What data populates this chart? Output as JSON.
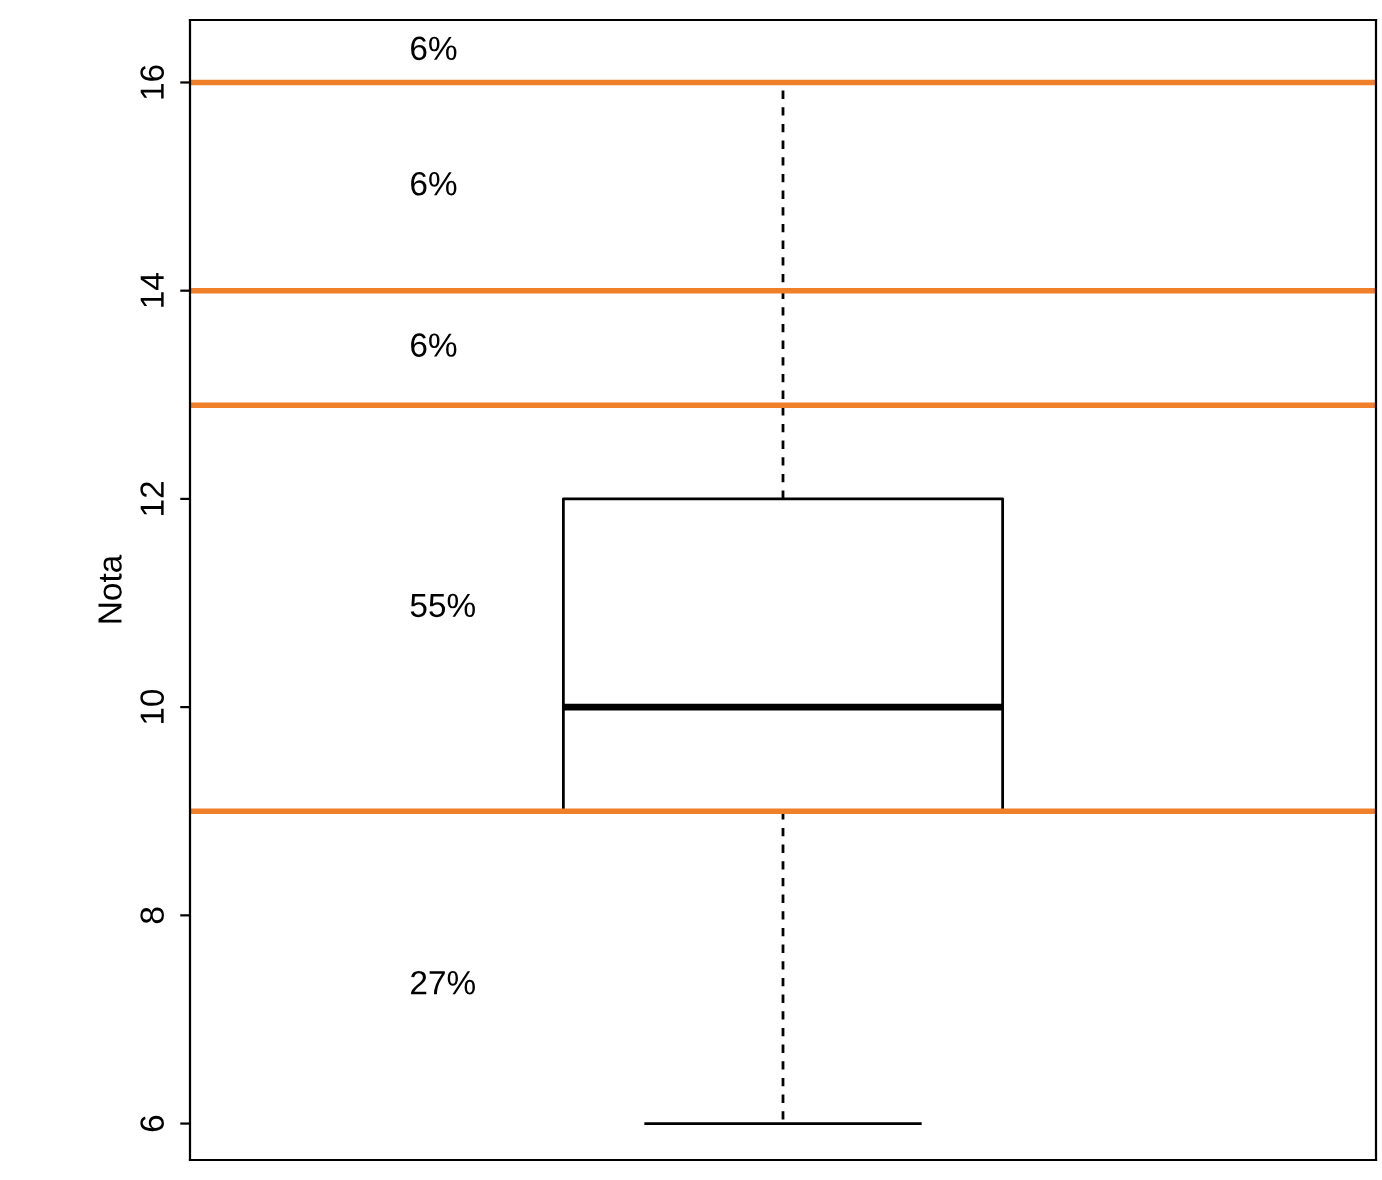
{
  "chart_data": {
    "type": "box",
    "ylabel": "Nota",
    "categories": [
      null
    ],
    "boxes": [
      {
        "low": 6,
        "q1": 9,
        "median": 10,
        "q3": 12,
        "high": 16
      }
    ],
    "ylim": [
      5.65,
      16.6
    ],
    "yticks": [
      6,
      8,
      10,
      12,
      14,
      16
    ],
    "grid": false,
    "ref_lines": [
      {
        "axis": "y",
        "value": 16,
        "color": "#f07f2a"
      },
      {
        "axis": "y",
        "value": 14,
        "color": "#f07f2a"
      },
      {
        "axis": "y",
        "value": 12.9,
        "color": "#f07f2a"
      },
      {
        "axis": "y",
        "value": 9,
        "color": "#f07f2a"
      }
    ],
    "annotations": [
      "6%",
      "6%",
      "6%",
      "55%",
      "27%"
    ]
  }
}
